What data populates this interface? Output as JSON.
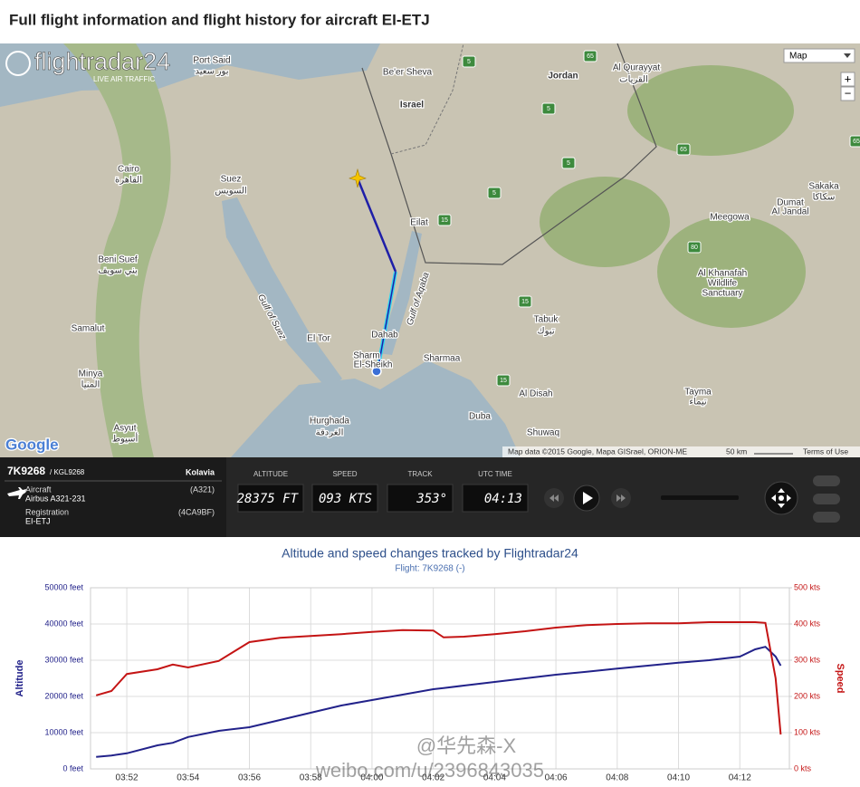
{
  "header": {
    "title": "Full flight information and flight history for aircraft EI-ETJ"
  },
  "map": {
    "logo": "flightradar24",
    "logo_sub": "LIVE AIR TRAFFIC",
    "map_type": "Map",
    "zoom_in": "+",
    "zoom_out": "−",
    "labels": [
      "Port Said",
      "بور سعيد",
      "Be'er Sheva",
      "Israel",
      "Jordan",
      "Al Qurayyat",
      "القريات",
      "Cairo",
      "القاهرة",
      "Suez",
      "السويس",
      "Eilat",
      "Sakaka",
      "سكاكا",
      "Dumat",
      "Al Jandal",
      "Meegowa",
      "Beni Suef",
      "بني سويف",
      "Al Khanafah",
      "Wildlife",
      "Sanctuary",
      "Tabuk",
      "تبوك",
      "Samalut",
      "Minya",
      "المنيا",
      "Gulf of Suez",
      "Gulf of Aqaba",
      "Dahab",
      "Sharm",
      "El-Sheikh",
      "El Tor",
      "Sharmaa",
      "Al Disah",
      "Tayma",
      "تيماء",
      "Duba",
      "Shuwaq",
      "Asyut",
      "أسيوط",
      "Hurghada",
      "الغردقة"
    ],
    "shields": [
      "65",
      "5",
      "5",
      "15",
      "5",
      "65",
      "15",
      "80",
      "15",
      "65",
      "5"
    ],
    "google": "Google",
    "attribution": "Map data ©2015 Google, Mapa GISrael, ORION-ME",
    "scale": "50 km",
    "terms": "Terms of Use"
  },
  "panel": {
    "flight": "7K9268",
    "callsign": "/ KGL9268",
    "airline": "Kolavia",
    "aircraft_label": "Aircraft",
    "aircraft_code": "(A321)",
    "aircraft": "Airbus A321-231",
    "registration_label": "Registration",
    "hex": "(4CA9BF)",
    "registration": "EI-ETJ",
    "altitude_label": "ALTITUDE",
    "altitude": "28375 FT",
    "speed_label": "SPEED",
    "speed": "093 KTS",
    "track_label": "TRACK",
    "track": "353°",
    "time_label": "UTC TIME",
    "time": "04:13"
  },
  "chart_data": {
    "type": "line",
    "title": "Altitude and speed changes tracked by Flightradar24",
    "subtitle": "Flight: 7K9268 (-)",
    "ylabel": "Altitude",
    "y2label": "Speed",
    "x": [
      "03:51:00",
      "03:51:30",
      "03:52:00",
      "03:53:00",
      "03:53:30",
      "03:54:00",
      "03:55:00",
      "03:56:00",
      "03:57:00",
      "03:58:00",
      "03:59:00",
      "04:00:00",
      "04:01:00",
      "04:02:00",
      "04:02:20",
      "04:03:00",
      "04:04:00",
      "04:05:00",
      "04:06:00",
      "04:07:00",
      "04:08:00",
      "04:09:00",
      "04:10:00",
      "04:11:00",
      "04:12:00",
      "04:12:30",
      "04:12:50",
      "04:13:10",
      "04:13:20"
    ],
    "series": [
      {
        "color": "#22228a",
        "values": [
          3300,
          3700,
          4300,
          6500,
          7200,
          8800,
          10500,
          11500,
          13500,
          15500,
          17500,
          19000,
          20500,
          22000,
          22300,
          23000,
          24000,
          25000,
          26000,
          26800,
          27700,
          28500,
          29300,
          30000,
          31000,
          33000,
          33700,
          31000,
          28500
        ]
      },
      {
        "color": "#c41414",
        "axis": "y2",
        "values": [
          203,
          215,
          262,
          275,
          288,
          280,
          298,
          350,
          362,
          367,
          372,
          378,
          383,
          382,
          363,
          365,
          372,
          380,
          390,
          397,
          400,
          402,
          402,
          405,
          405,
          405,
          403,
          250,
          95
        ]
      }
    ],
    "xlim": [
      "03:50:49",
      "04:13:37"
    ],
    "xticks": [
      "03:52",
      "03:54",
      "03:56",
      "03:58",
      "04:00",
      "04:02",
      "04:04",
      "04:06",
      "04:08",
      "04:10",
      "04:12"
    ],
    "ylim": [
      0,
      50000
    ],
    "yticks": [
      {
        "value": 0,
        "label": "0 feet"
      },
      {
        "value": 10000,
        "label": "10000 feet"
      },
      {
        "value": 20000,
        "label": "20000 feet"
      },
      {
        "value": 30000,
        "label": "30000 feet"
      },
      {
        "value": 40000,
        "label": "40000 feet"
      },
      {
        "value": 50000,
        "label": "50000 feet"
      }
    ],
    "y2lim": [
      0,
      500
    ],
    "y2ticks": [
      {
        "value": 0,
        "label": "0 kts"
      },
      {
        "value": 100,
        "label": "100 kts"
      },
      {
        "value": 200,
        "label": "200 kts"
      },
      {
        "value": 300,
        "label": "300 kts"
      },
      {
        "value": 400,
        "label": "400 kts"
      },
      {
        "value": 500,
        "label": "500 kts"
      }
    ],
    "grid": true
  },
  "watermark": {
    "line1": "@华先森-X",
    "line2": "weibo.com/u/2396843035"
  }
}
